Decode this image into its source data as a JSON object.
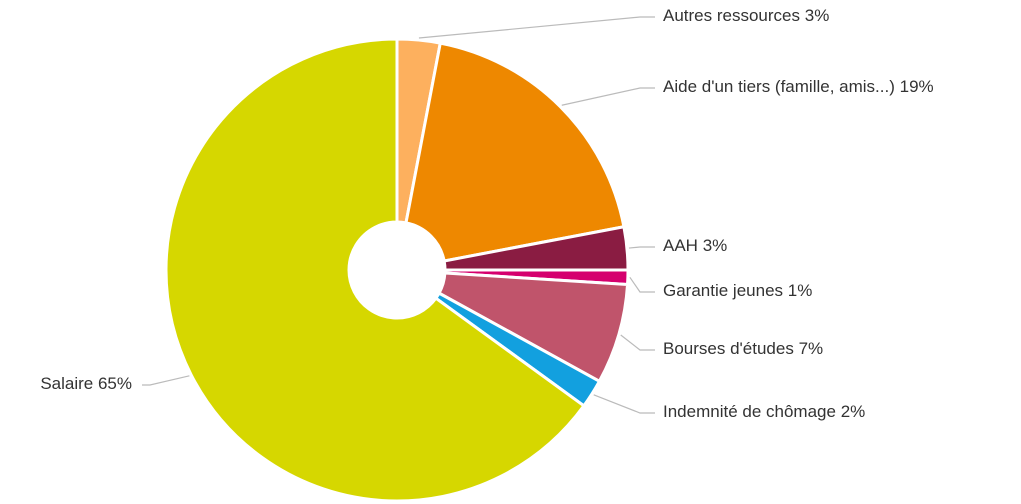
{
  "chart_data": {
    "type": "pie",
    "categories": [
      "Autres ressources",
      "Aide d'un tiers (famille, amis...)",
      "AAH",
      "Garantie jeunes",
      "Bourses d'études",
      "Indemnité de chômage",
      "Salaire"
    ],
    "values": [
      3,
      19,
      3,
      1,
      7,
      2,
      65
    ],
    "value_labels": [
      "3%",
      "19%",
      "3%",
      "1%",
      "7%",
      "2%",
      "65%"
    ],
    "colors": [
      "#fdb05e",
      "#ee8800",
      "#8a1c42",
      "#d5006e",
      "#c0546b",
      "#12a0df",
      "#d6d700"
    ],
    "donut": true
  }
}
